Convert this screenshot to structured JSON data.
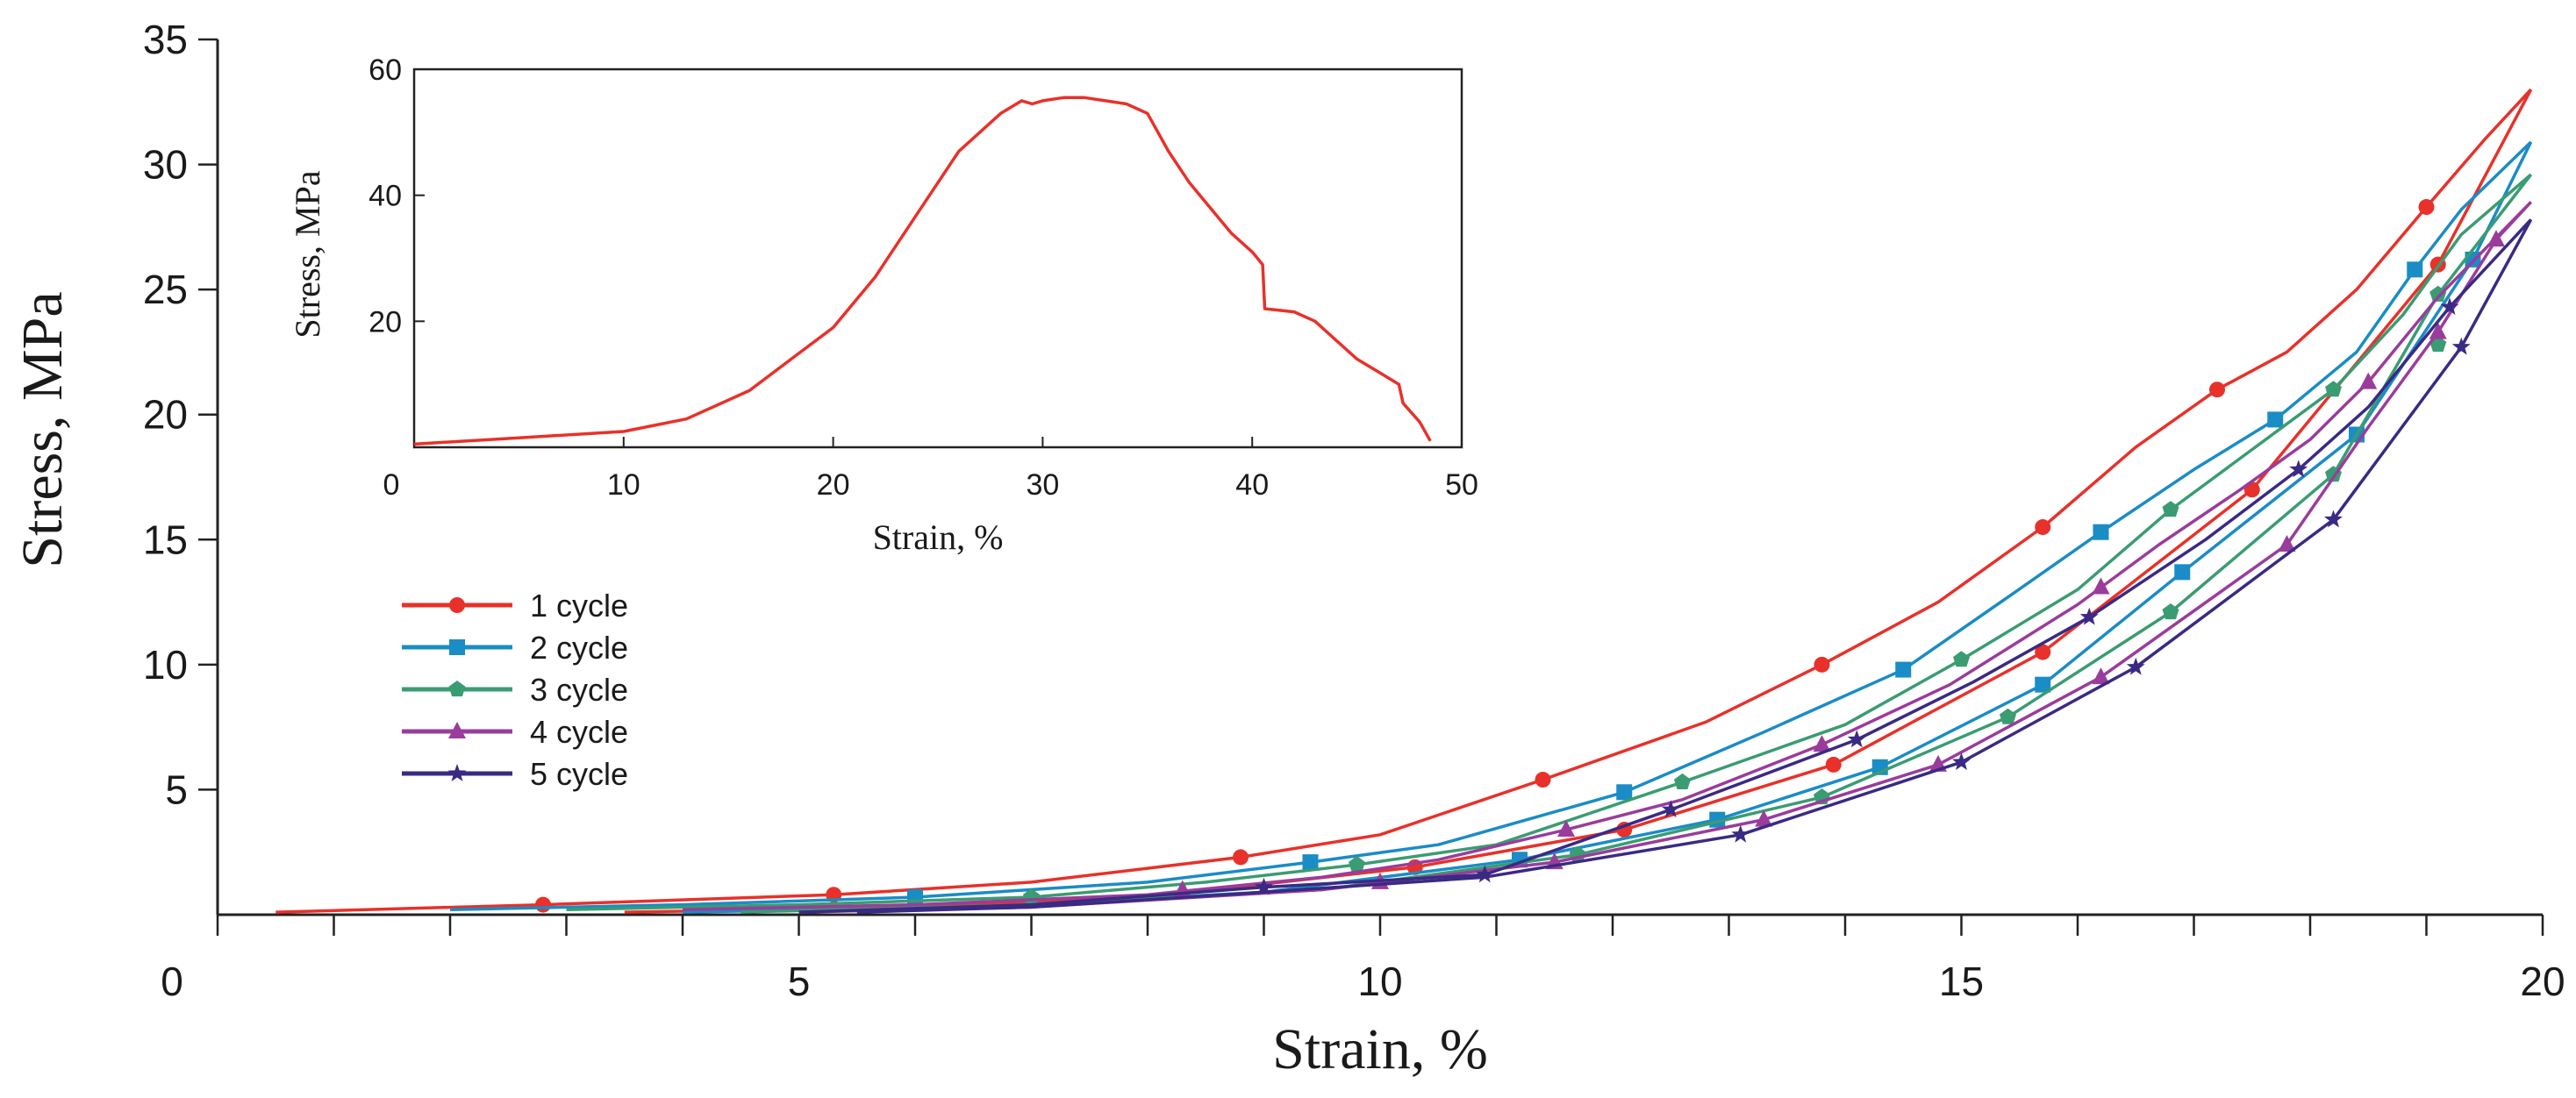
{
  "chart_data": [
    {
      "type": "line",
      "xlabel": "Strain, %",
      "ylabel": "Stress, MPa",
      "xlim": [
        0,
        20
      ],
      "ylim": [
        0,
        35
      ],
      "xticks": [
        "0",
        "5",
        "10",
        "15",
        "20"
      ],
      "yticks": [
        "5",
        "10",
        "15",
        "20",
        "25",
        "30",
        "35"
      ],
      "grid": false,
      "legend_position": "left",
      "series": [
        {
          "name": "1 cycle",
          "color": "#e8312a",
          "marker": "circle",
          "loading": [
            [
              0.5,
              0.1
            ],
            [
              2.8,
              0.4
            ],
            [
              5.3,
              0.8
            ],
            [
              7,
              1.3
            ],
            [
              8.8,
              2.3
            ],
            [
              10,
              3.2
            ],
            [
              11.4,
              5.4
            ],
            [
              12.8,
              7.7
            ],
            [
              13.8,
              10
            ],
            [
              14.8,
              12.5
            ],
            [
              15.7,
              15.5
            ],
            [
              16.5,
              18.7
            ],
            [
              17.2,
              21
            ],
            [
              17.8,
              22.5
            ],
            [
              18.4,
              25
            ],
            [
              19,
              28.3
            ],
            [
              19.5,
              31
            ],
            [
              19.9,
              33
            ]
          ],
          "unloading": [
            [
              19.9,
              33
            ],
            [
              19.1,
              26
            ],
            [
              17.5,
              17
            ],
            [
              15.7,
              10.5
            ],
            [
              13.9,
              6
            ],
            [
              12.1,
              3.4
            ],
            [
              10.3,
              1.9
            ],
            [
              8,
              0.7
            ],
            [
              5.5,
              0.25
            ],
            [
              3.5,
              0.1
            ]
          ],
          "markers": [
            [
              2.8,
              0.4
            ],
            [
              5.3,
              0.8
            ],
            [
              8.8,
              2.3
            ],
            [
              11.4,
              5.4
            ],
            [
              13.8,
              10
            ],
            [
              15.7,
              15.5
            ],
            [
              17.2,
              21
            ],
            [
              19,
              28.3
            ],
            [
              19.1,
              26
            ],
            [
              17.5,
              17
            ],
            [
              15.7,
              10.5
            ],
            [
              13.9,
              6
            ],
            [
              12.1,
              3.4
            ],
            [
              10.3,
              1.9
            ]
          ]
        },
        {
          "name": "2 cycle",
          "color": "#1a8cc6",
          "marker": "square",
          "loading": [
            [
              2,
              0.2
            ],
            [
              4,
              0.4
            ],
            [
              6,
              0.7
            ],
            [
              8,
              1.3
            ],
            [
              9.4,
              2.1
            ],
            [
              10.5,
              2.8
            ],
            [
              12.1,
              4.9
            ],
            [
              13.3,
              7.3
            ],
            [
              14.5,
              9.8
            ],
            [
              15.4,
              12.7
            ],
            [
              16.2,
              15.3
            ],
            [
              17,
              17.8
            ],
            [
              17.7,
              19.8
            ],
            [
              18.4,
              22.5
            ],
            [
              18.9,
              25.8
            ],
            [
              19.3,
              28.2
            ],
            [
              19.9,
              30.9
            ]
          ],
          "unloading": [
            [
              19.9,
              30.9
            ],
            [
              19.4,
              26.2
            ],
            [
              18.4,
              19.2
            ],
            [
              16.9,
              13.7
            ],
            [
              15.7,
              9.2
            ],
            [
              14.3,
              5.9
            ],
            [
              12.9,
              3.8
            ],
            [
              11.2,
              2.2
            ],
            [
              9,
              0.9
            ],
            [
              6.5,
              0.3
            ],
            [
              4,
              0.1
            ]
          ],
          "markers": [
            [
              6,
              0.7
            ],
            [
              9.4,
              2.1
            ],
            [
              12.1,
              4.9
            ],
            [
              14.5,
              9.8
            ],
            [
              16.2,
              15.3
            ],
            [
              17.7,
              19.8
            ],
            [
              18.9,
              25.8
            ],
            [
              19.4,
              26.2
            ],
            [
              18.4,
              19.2
            ],
            [
              16.9,
              13.7
            ],
            [
              15.7,
              9.2
            ],
            [
              14.3,
              5.9
            ],
            [
              12.9,
              3.8
            ],
            [
              11.2,
              2.2
            ]
          ]
        },
        {
          "name": "3 cycle",
          "color": "#3a9c72",
          "marker": "pentagon",
          "loading": [
            [
              3,
              0.2
            ],
            [
              5,
              0.4
            ],
            [
              7,
              0.7
            ],
            [
              8.5,
              1.3
            ],
            [
              9.8,
              2
            ],
            [
              11,
              2.8
            ],
            [
              12.6,
              5.3
            ],
            [
              14,
              7.6
            ],
            [
              15,
              10.2
            ],
            [
              16,
              13
            ],
            [
              16.8,
              16.2
            ],
            [
              17.5,
              18.6
            ],
            [
              18.2,
              21
            ],
            [
              18.8,
              24
            ],
            [
              19.3,
              27.2
            ],
            [
              19.9,
              29.6
            ]
          ],
          "unloading": [
            [
              19.9,
              29.6
            ],
            [
              19.1,
              24.8
            ],
            [
              18.2,
              17.6
            ],
            [
              16.8,
              12.1
            ],
            [
              15.4,
              7.9
            ],
            [
              13.8,
              4.7
            ],
            [
              11.7,
              2.4
            ],
            [
              9.5,
              1
            ],
            [
              7,
              0.4
            ],
            [
              4.5,
              0.1
            ]
          ],
          "markers": [
            [
              7,
              0.7
            ],
            [
              9.8,
              2
            ],
            [
              12.6,
              5.3
            ],
            [
              15,
              10.2
            ],
            [
              16.8,
              16.2
            ],
            [
              18.2,
              21
            ],
            [
              19.1,
              24.8
            ],
            [
              19.1,
              22.8
            ],
            [
              18.2,
              17.6
            ],
            [
              16.8,
              12.1
            ],
            [
              15.4,
              7.9
            ],
            [
              13.8,
              4.7
            ],
            [
              11.7,
              2.4
            ]
          ]
        },
        {
          "name": "4 cycle",
          "color": "#9a3c9c",
          "marker": "triangle",
          "loading": [
            [
              4,
              0.2
            ],
            [
              6,
              0.4
            ],
            [
              8,
              0.8
            ],
            [
              9.5,
              1.5
            ],
            [
              10.5,
              2.2
            ],
            [
              11.6,
              3.4
            ],
            [
              12.6,
              4.6
            ],
            [
              13.8,
              6.8
            ],
            [
              14.9,
              9.2
            ],
            [
              16,
              12.4
            ],
            [
              16.7,
              14.8
            ],
            [
              17.4,
              17
            ],
            [
              18,
              19
            ],
            [
              18.5,
              21.3
            ],
            [
              19.1,
              24.7
            ],
            [
              19.9,
              28.5
            ]
          ],
          "unloading": [
            [
              19.9,
              28.5
            ],
            [
              19.6,
              27
            ],
            [
              19.1,
              23.3
            ],
            [
              18.5,
              19.5
            ],
            [
              17.8,
              14.8
            ],
            [
              16.2,
              9.5
            ],
            [
              14.8,
              6
            ],
            [
              13.3,
              3.8
            ],
            [
              11.5,
              2.1
            ],
            [
              9.5,
              1
            ],
            [
              7,
              0.3
            ],
            [
              5,
              0.1
            ]
          ],
          "markers": [
            [
              8.3,
              1
            ],
            [
              10,
              1.3
            ],
            [
              11.6,
              3.4
            ],
            [
              13.8,
              6.8
            ],
            [
              16.2,
              13.1
            ],
            [
              18.5,
              21.3
            ],
            [
              19.6,
              27
            ],
            [
              19.1,
              23.3
            ],
            [
              17.8,
              14.8
            ],
            [
              16.2,
              9.5
            ],
            [
              14.8,
              6
            ],
            [
              13.3,
              3.8
            ],
            [
              11.5,
              2.1
            ]
          ]
        },
        {
          "name": "5 cycle",
          "color": "#3a2a84",
          "marker": "star",
          "loading": [
            [
              5,
              0.1
            ],
            [
              7,
              0.4
            ],
            [
              9,
              1.1
            ],
            [
              10.9,
              1.6
            ],
            [
              12.5,
              4.2
            ],
            [
              14.1,
              7
            ],
            [
              15.1,
              9.3
            ],
            [
              16.1,
              11.9
            ],
            [
              17.1,
              15
            ],
            [
              17.9,
              17.8
            ],
            [
              18.5,
              20.3
            ],
            [
              19.2,
              24.3
            ],
            [
              19.9,
              27.8
            ]
          ],
          "unloading": [
            [
              19.9,
              27.8
            ],
            [
              19.3,
              22.7
            ],
            [
              18.2,
              15.8
            ],
            [
              16.5,
              9.9
            ],
            [
              15,
              6.1
            ],
            [
              13.1,
              3.2
            ],
            [
              10.9,
              1.5
            ],
            [
              9,
              0.9
            ],
            [
              7,
              0.3
            ],
            [
              5.5,
              0.1
            ]
          ],
          "markers": [
            [
              9,
              1.1
            ],
            [
              10.9,
              1.6
            ],
            [
              12.5,
              4.2
            ],
            [
              14.1,
              7
            ],
            [
              16.1,
              11.9
            ],
            [
              17.9,
              17.8
            ],
            [
              19.2,
              24.3
            ],
            [
              19.3,
              22.7
            ],
            [
              18.2,
              15.8
            ],
            [
              16.5,
              9.9
            ],
            [
              15,
              6.1
            ],
            [
              13.1,
              3.2
            ]
          ]
        }
      ]
    },
    {
      "type": "line",
      "xlabel": "Strain, %",
      "ylabel": "Stress, MPa",
      "xlim": [
        0,
        50
      ],
      "ylim": [
        0,
        60
      ],
      "xticks": [
        "0",
        "10",
        "20",
        "30",
        "40",
        "50"
      ],
      "yticks": [
        "20",
        "40",
        "60"
      ],
      "grid": false,
      "series": [
        {
          "color": "#e8312a",
          "points": [
            [
              0,
              0.5
            ],
            [
              5,
              1.5
            ],
            [
              10,
              2.5
            ],
            [
              13,
              4.5
            ],
            [
              16,
              9
            ],
            [
              18,
              14
            ],
            [
              20,
              19
            ],
            [
              22,
              27
            ],
            [
              24,
              37
            ],
            [
              26,
              47
            ],
            [
              28,
              53
            ],
            [
              29,
              55
            ],
            [
              29.5,
              54.5
            ],
            [
              30,
              55
            ],
            [
              31,
              55.5
            ],
            [
              32,
              55.5
            ],
            [
              33,
              55
            ],
            [
              34,
              54.5
            ],
            [
              35,
              53
            ],
            [
              36,
              47
            ],
            [
              37,
              42
            ],
            [
              38,
              38
            ],
            [
              39,
              34
            ],
            [
              40,
              31
            ],
            [
              40.5,
              29
            ],
            [
              40.6,
              22
            ],
            [
              42,
              21.5
            ],
            [
              43,
              20
            ],
            [
              44,
              17
            ],
            [
              45,
              14
            ],
            [
              46,
              12
            ],
            [
              47,
              10
            ],
            [
              47.2,
              7
            ],
            [
              48,
              4
            ],
            [
              48.5,
              1
            ]
          ]
        }
      ]
    }
  ],
  "legend_entries": [
    "1 cycle",
    "2 cycle",
    "3 cycle",
    "4 cycle",
    "5 cycle"
  ]
}
